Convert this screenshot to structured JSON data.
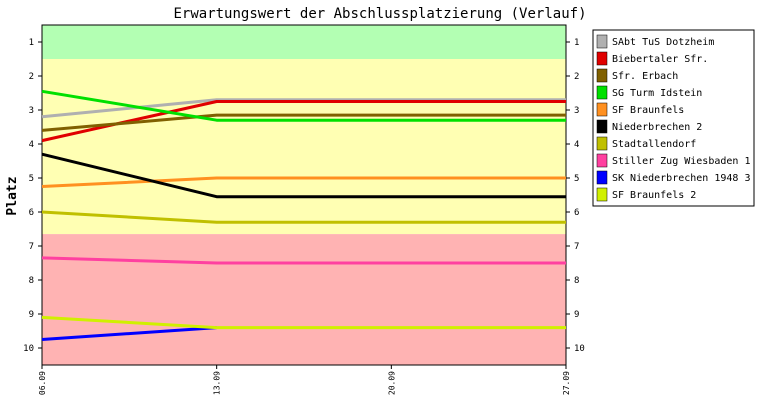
{
  "chart_data": {
    "type": "line",
    "title": "Erwartungswert der Abschlussplatzierung (Verlauf)",
    "ylabel": "Platz",
    "xlabel": "",
    "x": [
      "06.09",
      "13.09",
      "20.09",
      "27.09"
    ],
    "y_ticks": [
      "1",
      "2",
      "3",
      "4",
      "5",
      "6",
      "7",
      "8",
      "9",
      "10"
    ],
    "ylim": [
      0.5,
      10.5
    ],
    "y_inverted": true,
    "bands": [
      {
        "from": 0.5,
        "to": 1.5,
        "color": "#b3ffb3"
      },
      {
        "from": 1.5,
        "to": 6.65,
        "color": "#ffffb3"
      },
      {
        "from": 6.65,
        "to": 10.5,
        "color": "#ffb3b3"
      }
    ],
    "legend_position": "right",
    "series": [
      {
        "name": "SAbt TuS Dotzheim",
        "color": "#b0b0b0",
        "values": [
          3.2,
          2.7,
          2.7,
          2.7
        ]
      },
      {
        "name": "Biebertaler Sfr.",
        "color": "#e00000",
        "values": [
          3.9,
          2.75,
          2.75,
          2.75
        ]
      },
      {
        "name": "Sfr. Erbach",
        "color": "#806000",
        "values": [
          3.6,
          3.15,
          3.15,
          3.15
        ]
      },
      {
        "name": "SG Turm Idstein",
        "color": "#00e000",
        "values": [
          2.45,
          3.3,
          3.3,
          3.3
        ]
      },
      {
        "name": "SF Braunfels",
        "color": "#ff9020",
        "values": [
          5.25,
          5.0,
          5.0,
          5.0
        ]
      },
      {
        "name": "Niederbrechen 2",
        "color": "#000000",
        "values": [
          4.3,
          5.55,
          5.55,
          5.55
        ]
      },
      {
        "name": "Stadtallendorf",
        "color": "#c0c000",
        "values": [
          6.0,
          6.3,
          6.3,
          6.3
        ]
      },
      {
        "name": "Stiller Zug Wiesbaden 1",
        "color": "#ff40a0",
        "values": [
          7.35,
          7.5,
          7.5,
          7.5
        ]
      },
      {
        "name": "SK Niederbrechen 1948 3",
        "color": "#0000ff",
        "values": [
          9.75,
          9.4,
          null,
          null
        ]
      },
      {
        "name": "SF Braunfels 2",
        "color": "#d0f000",
        "values": [
          9.1,
          9.4,
          9.4,
          9.4
        ]
      }
    ]
  }
}
